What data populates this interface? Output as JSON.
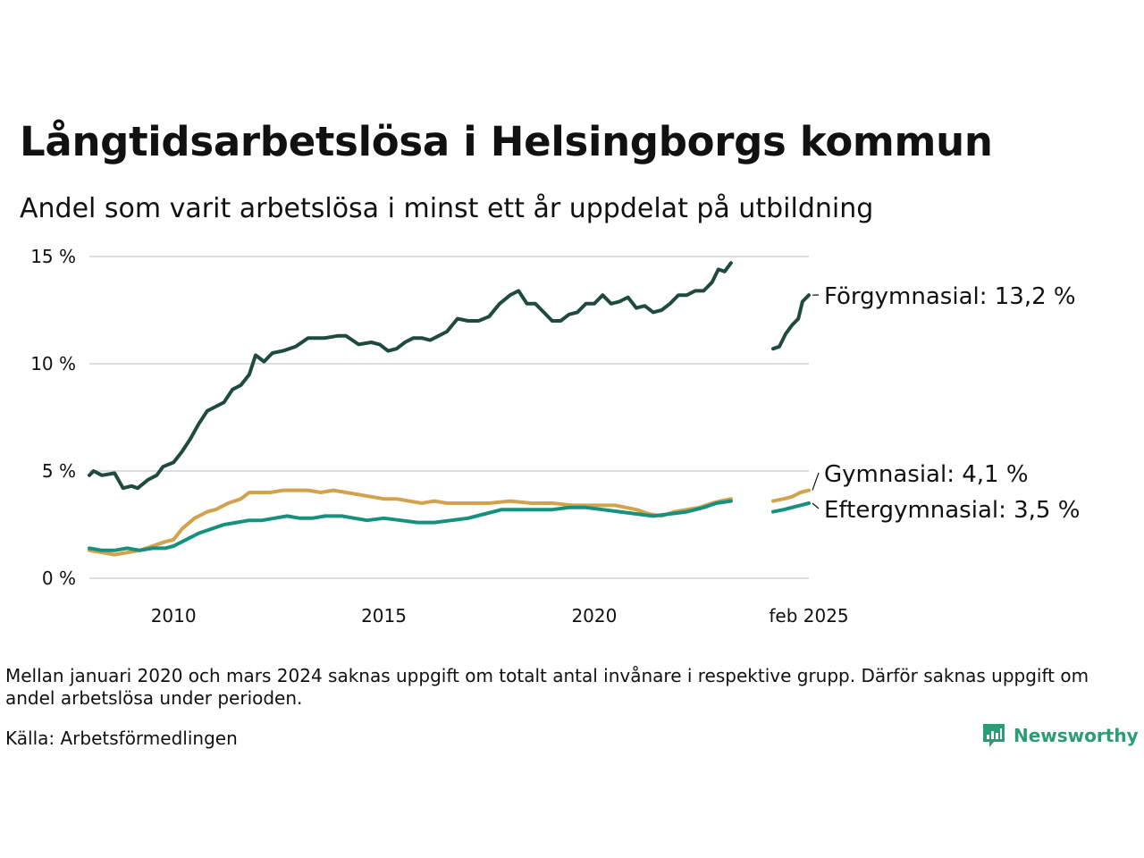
{
  "title": "Långtidsarbetslösa i Helsingborgs kommun",
  "subtitle": "Andel som varit arbetslösa i minst ett år uppdelat på utbildning",
  "footnote": "Mellan januari 2020 och mars 2024 saknas uppgift om totalt antal invånare i respektive grupp. Därför saknas uppgift om andel arbetslösa under perioden.",
  "source": "Källa: Arbetsförmedlingen",
  "brand": "Newsworthy",
  "colors": {
    "brand": "#2a9d73",
    "grid": "#dddddd"
  },
  "chart_data": {
    "type": "line",
    "title": "Långtidsarbetslösa i Helsingborgs kommun",
    "subtitle": "Andel som varit arbetslösa i minst ett år uppdelat på utbildning",
    "xlabel": "",
    "ylabel": "",
    "ylim": [
      0,
      15
    ],
    "yticks": [
      0,
      5,
      10,
      15
    ],
    "ytick_labels": [
      "0 %",
      "5 %",
      "10 %",
      "15 %"
    ],
    "xlim": [
      2008.0,
      2025.1
    ],
    "xticks": [
      2010,
      2015,
      2020,
      2025.1
    ],
    "xtick_labels": [
      "2010",
      "2015",
      "2020",
      "feb 2025"
    ],
    "grid": true,
    "legend": "direct labels at line ends",
    "series": [
      {
        "name": "Förgymnasial",
        "end_label": "Förgymnasial: 13,2 %",
        "color": "#1f4a3f",
        "segments": [
          [
            [
              2008.0,
              4.8
            ],
            [
              2008.1,
              5.0
            ],
            [
              2008.3,
              4.8
            ],
            [
              2008.6,
              4.9
            ],
            [
              2008.8,
              4.2
            ],
            [
              2009.0,
              4.3
            ],
            [
              2009.15,
              4.2
            ],
            [
              2009.4,
              4.6
            ],
            [
              2009.6,
              4.8
            ],
            [
              2009.75,
              5.2
            ],
            [
              2010.0,
              5.4
            ],
            [
              2010.2,
              5.9
            ],
            [
              2010.4,
              6.5
            ],
            [
              2010.6,
              7.2
            ],
            [
              2010.8,
              7.8
            ],
            [
              2011.0,
              8.0
            ],
            [
              2011.2,
              8.2
            ],
            [
              2011.4,
              8.8
            ],
            [
              2011.6,
              9.0
            ],
            [
              2011.8,
              9.5
            ],
            [
              2011.95,
              10.4
            ],
            [
              2012.15,
              10.1
            ],
            [
              2012.35,
              10.5
            ],
            [
              2012.6,
              10.6
            ],
            [
              2012.9,
              10.8
            ],
            [
              2013.2,
              11.2
            ],
            [
              2013.6,
              11.2
            ],
            [
              2013.9,
              11.3
            ],
            [
              2014.1,
              11.3
            ],
            [
              2014.4,
              10.9
            ],
            [
              2014.7,
              11.0
            ],
            [
              2014.9,
              10.9
            ],
            [
              2015.1,
              10.6
            ],
            [
              2015.3,
              10.7
            ],
            [
              2015.5,
              11.0
            ],
            [
              2015.7,
              11.2
            ],
            [
              2015.9,
              11.2
            ],
            [
              2016.1,
              11.1
            ],
            [
              2016.3,
              11.3
            ],
            [
              2016.5,
              11.5
            ],
            [
              2016.75,
              12.1
            ],
            [
              2017.0,
              12.0
            ],
            [
              2017.25,
              12.0
            ],
            [
              2017.5,
              12.2
            ],
            [
              2017.75,
              12.8
            ],
            [
              2018.0,
              13.2
            ],
            [
              2018.2,
              13.4
            ],
            [
              2018.4,
              12.8
            ],
            [
              2018.6,
              12.8
            ],
            [
              2018.8,
              12.4
            ],
            [
              2019.0,
              12.0
            ],
            [
              2019.2,
              12.0
            ],
            [
              2019.4,
              12.3
            ],
            [
              2019.6,
              12.4
            ],
            [
              2019.8,
              12.8
            ],
            [
              2020.0,
              12.8
            ],
            [
              2020.2,
              13.2
            ],
            [
              2020.4,
              12.8
            ],
            [
              2020.6,
              12.9
            ],
            [
              2020.8,
              13.1
            ],
            [
              2021.0,
              12.6
            ],
            [
              2021.2,
              12.7
            ],
            [
              2021.4,
              12.4
            ],
            [
              2021.6,
              12.5
            ],
            [
              2021.8,
              12.8
            ],
            [
              2022.0,
              13.2
            ],
            [
              2022.2,
              13.2
            ],
            [
              2022.4,
              13.4
            ],
            [
              2022.6,
              13.4
            ],
            [
              2022.8,
              13.8
            ],
            [
              2022.95,
              14.4
            ],
            [
              2023.1,
              14.3
            ],
            [
              2023.25,
              14.7
            ]
          ],
          [
            [
              2024.25,
              10.7
            ],
            [
              2024.4,
              10.8
            ],
            [
              2024.55,
              11.4
            ],
            [
              2024.7,
              11.8
            ],
            [
              2024.85,
              12.1
            ],
            [
              2024.95,
              12.9
            ],
            [
              2025.1,
              13.2
            ]
          ]
        ]
      },
      {
        "name": "Gymnasial",
        "end_label": "Gymnasial:  4,1 %",
        "color": "#d3a24c",
        "segments": [
          [
            [
              2008.0,
              1.3
            ],
            [
              2008.3,
              1.2
            ],
            [
              2008.6,
              1.1
            ],
            [
              2008.9,
              1.2
            ],
            [
              2009.2,
              1.3
            ],
            [
              2009.5,
              1.5
            ],
            [
              2009.8,
              1.7
            ],
            [
              2010.0,
              1.8
            ],
            [
              2010.2,
              2.3
            ],
            [
              2010.5,
              2.8
            ],
            [
              2010.8,
              3.1
            ],
            [
              2011.0,
              3.2
            ],
            [
              2011.3,
              3.5
            ],
            [
              2011.6,
              3.7
            ],
            [
              2011.8,
              4.0
            ],
            [
              2012.0,
              4.0
            ],
            [
              2012.3,
              4.0
            ],
            [
              2012.6,
              4.1
            ],
            [
              2012.9,
              4.1
            ],
            [
              2013.2,
              4.1
            ],
            [
              2013.5,
              4.0
            ],
            [
              2013.8,
              4.1
            ],
            [
              2014.1,
              4.0
            ],
            [
              2014.4,
              3.9
            ],
            [
              2014.7,
              3.8
            ],
            [
              2015.0,
              3.7
            ],
            [
              2015.3,
              3.7
            ],
            [
              2015.6,
              3.6
            ],
            [
              2015.9,
              3.5
            ],
            [
              2016.2,
              3.6
            ],
            [
              2016.5,
              3.5
            ],
            [
              2016.8,
              3.5
            ],
            [
              2017.0,
              3.5
            ],
            [
              2017.5,
              3.5
            ],
            [
              2018.0,
              3.6
            ],
            [
              2018.5,
              3.5
            ],
            [
              2019.0,
              3.5
            ],
            [
              2019.5,
              3.4
            ],
            [
              2020.0,
              3.4
            ],
            [
              2020.5,
              3.4
            ],
            [
              2021.0,
              3.2
            ],
            [
              2021.3,
              3.0
            ],
            [
              2021.6,
              2.9
            ],
            [
              2021.9,
              3.1
            ],
            [
              2022.2,
              3.2
            ],
            [
              2022.5,
              3.3
            ],
            [
              2022.8,
              3.5
            ],
            [
              2023.0,
              3.6
            ],
            [
              2023.25,
              3.7
            ]
          ],
          [
            [
              2024.25,
              3.6
            ],
            [
              2024.5,
              3.7
            ],
            [
              2024.7,
              3.8
            ],
            [
              2024.9,
              4.0
            ],
            [
              2025.1,
              4.1
            ]
          ]
        ]
      },
      {
        "name": "Eftergymnasial",
        "end_label": "Eftergymnasial:  3,5 %",
        "color": "#17917f",
        "segments": [
          [
            [
              2008.0,
              1.4
            ],
            [
              2008.3,
              1.3
            ],
            [
              2008.6,
              1.3
            ],
            [
              2008.9,
              1.4
            ],
            [
              2009.2,
              1.3
            ],
            [
              2009.5,
              1.4
            ],
            [
              2009.8,
              1.4
            ],
            [
              2010.0,
              1.5
            ],
            [
              2010.3,
              1.8
            ],
            [
              2010.6,
              2.1
            ],
            [
              2010.9,
              2.3
            ],
            [
              2011.2,
              2.5
            ],
            [
              2011.5,
              2.6
            ],
            [
              2011.8,
              2.7
            ],
            [
              2012.1,
              2.7
            ],
            [
              2012.4,
              2.8
            ],
            [
              2012.7,
              2.9
            ],
            [
              2013.0,
              2.8
            ],
            [
              2013.3,
              2.8
            ],
            [
              2013.6,
              2.9
            ],
            [
              2014.0,
              2.9
            ],
            [
              2014.3,
              2.8
            ],
            [
              2014.6,
              2.7
            ],
            [
              2015.0,
              2.8
            ],
            [
              2015.4,
              2.7
            ],
            [
              2015.8,
              2.6
            ],
            [
              2016.2,
              2.6
            ],
            [
              2016.6,
              2.7
            ],
            [
              2017.0,
              2.8
            ],
            [
              2017.4,
              3.0
            ],
            [
              2017.8,
              3.2
            ],
            [
              2018.2,
              3.2
            ],
            [
              2018.6,
              3.2
            ],
            [
              2019.0,
              3.2
            ],
            [
              2019.4,
              3.3
            ],
            [
              2019.8,
              3.3
            ],
            [
              2020.2,
              3.2
            ],
            [
              2020.6,
              3.1
            ],
            [
              2021.0,
              3.0
            ],
            [
              2021.4,
              2.9
            ],
            [
              2021.8,
              3.0
            ],
            [
              2022.2,
              3.1
            ],
            [
              2022.6,
              3.3
            ],
            [
              2022.9,
              3.5
            ],
            [
              2023.25,
              3.6
            ]
          ],
          [
            [
              2024.25,
              3.1
            ],
            [
              2024.5,
              3.2
            ],
            [
              2024.7,
              3.3
            ],
            [
              2024.9,
              3.4
            ],
            [
              2025.1,
              3.5
            ]
          ]
        ]
      }
    ]
  }
}
